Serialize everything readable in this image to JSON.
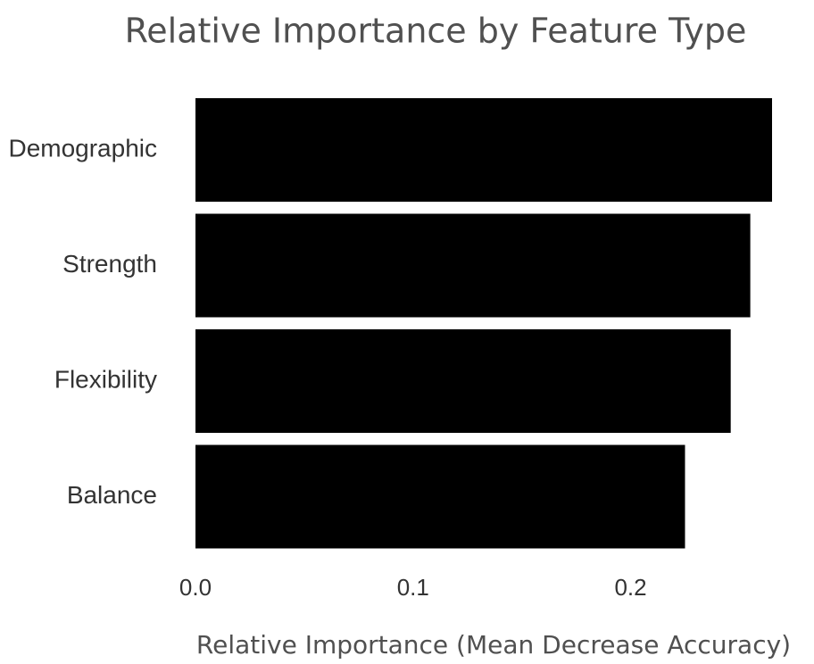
{
  "chart_data": {
    "type": "bar",
    "orientation": "horizontal",
    "title": "Relative Importance by Feature Type",
    "xlabel": "Relative Importance (Mean Decrease Accuracy)",
    "ylabel": "",
    "categories": [
      "Demographic",
      "Strength",
      "Flexibility",
      "Balance"
    ],
    "values": [
      0.265,
      0.255,
      0.246,
      0.225
    ],
    "xlim": [
      0,
      0.265
    ],
    "xticks": [
      0.0,
      0.1,
      0.2
    ],
    "xtick_labels": [
      "0.0",
      "0.1",
      "0.2"
    ],
    "bar_color": "#000000",
    "grid": false,
    "legend": false
  }
}
